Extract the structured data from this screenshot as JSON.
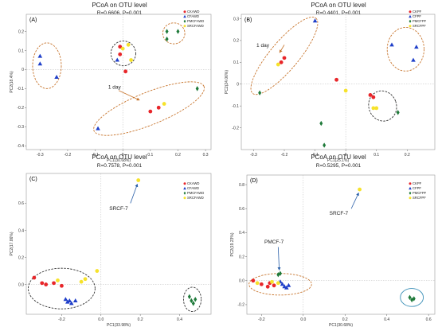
{
  "colors": {
    "red": "#e8262a",
    "blue": "#1f3fc9",
    "green": "#1f7a3a",
    "yellow": "#f6e22b",
    "ellipse_orange": "#c8762f",
    "ellipse_dark": "#333333",
    "ellipse_blue": "#3a8fb7",
    "arrow_orange": "#c8762f",
    "arrow_blue": "#2a5fa8"
  },
  "chart_data": [
    {
      "type": "scatter",
      "panel_label": "(A)",
      "title": "PCoA on OTU level",
      "subtitle": "R=0.6606, P=0.001",
      "xlabel": "PC1(30.68%)",
      "ylabel": "PC2(18.4%)",
      "xlim": [
        -0.35,
        0.32
      ],
      "ylim": [
        -0.42,
        0.29
      ],
      "xticks": [
        -0.3,
        -0.2,
        -0.1,
        0,
        0.1,
        0.2,
        0.3
      ],
      "xtick_labels": [
        "-0.3",
        "-0.2",
        "-0.1",
        "0",
        "0.1",
        "0.2",
        "0.3"
      ],
      "yticks": [
        -0.4,
        -0.3,
        -0.2,
        -0.1,
        0,
        0.1,
        0.2
      ],
      "ytick_labels": [
        "-0.4",
        "-0.3",
        "-0.2",
        "-0.1",
        "0",
        "0.1",
        "0.2"
      ],
      "series": [
        {
          "name": "CKAWD",
          "color": "red",
          "marker": "circle",
          "x": [
            -0.01,
            -0.01,
            0.01,
            0.1,
            0.13
          ],
          "y": [
            0.12,
            0.08,
            -0.01,
            -0.22,
            -0.2
          ]
        },
        {
          "name": "CFAWD",
          "color": "blue",
          "marker": "triangle",
          "x": [
            -0.3,
            -0.3,
            -0.24,
            -0.02,
            -0.09
          ],
          "y": [
            0.07,
            0.03,
            -0.04,
            0.05,
            -0.31
          ]
        },
        {
          "name": "PMCFAWD",
          "color": "green",
          "marker": "diamond",
          "x": [
            0.16,
            0.2,
            0.16,
            0.27
          ],
          "y": [
            0.2,
            0.2,
            0.16,
            -0.1
          ]
        },
        {
          "name": "SRCFAWD",
          "color": "yellow",
          "marker": "circle",
          "x": [
            0.0,
            0.03,
            0.15,
            0.02
          ],
          "y": [
            0.11,
            0.05,
            -0.18,
            0.13
          ]
        }
      ],
      "annotations": [
        {
          "text": "1 day"
        }
      ],
      "legend": "top-right"
    },
    {
      "type": "scatter",
      "panel_label": "(B)",
      "title": "PCoA on OTU level",
      "subtitle": "R=0.4401, P=0.001",
      "xlabel": "PC1(25.1%)",
      "ylabel": "PC2(24.06%)",
      "xlim": [
        -0.34,
        0.29
      ],
      "ylim": [
        -0.3,
        0.32
      ],
      "xticks": [
        -0.3,
        -0.2,
        -0.1,
        0,
        0.1,
        0.2
      ],
      "xtick_labels": [
        "-0.3",
        "-0.2",
        "-0.1",
        "0",
        "0.1",
        "0.2"
      ],
      "yticks": [
        -0.2,
        -0.1,
        0,
        0.1,
        0.2,
        0.3
      ],
      "ytick_labels": [
        "-0.2",
        "-0.1",
        "0",
        "0.1",
        "0.2",
        "0.3"
      ],
      "series": [
        {
          "name": "CKPF",
          "color": "red",
          "marker": "circle",
          "x": [
            -0.2,
            -0.21,
            0.08,
            0.09,
            -0.03
          ],
          "y": [
            0.12,
            0.1,
            -0.05,
            -0.06,
            0.02
          ]
        },
        {
          "name": "CFPF",
          "color": "blue",
          "marker": "triangle",
          "x": [
            -0.1,
            0.15,
            0.22,
            0.23
          ],
          "y": [
            0.29,
            0.18,
            0.11,
            0.17
          ]
        },
        {
          "name": "PMCFPF",
          "color": "green",
          "marker": "diamond",
          "x": [
            -0.28,
            -0.08,
            -0.07,
            0.17
          ],
          "y": [
            -0.04,
            -0.18,
            -0.28,
            -0.13
          ]
        },
        {
          "name": "SRCFPF",
          "color": "yellow",
          "marker": "circle",
          "x": [
            -0.22,
            0.0,
            0.09,
            0.1
          ],
          "y": [
            0.09,
            -0.03,
            -0.11,
            -0.11
          ]
        }
      ],
      "annotations": [
        {
          "text": "1 day"
        }
      ],
      "legend": "top-right"
    },
    {
      "type": "scatter",
      "panel_label": "(C)",
      "title": "PCoA on OTU level",
      "subtitle": "R=0.7578, P=0.001",
      "xlabel": "PC1(33.98%)",
      "ylabel": "PC2(17.86%)",
      "xlim": [
        -0.38,
        0.56
      ],
      "ylim": [
        -0.22,
        0.82
      ],
      "xticks": [
        -0.2,
        0,
        0.2,
        0.4
      ],
      "xtick_labels": [
        "-0.2",
        "0.0",
        "0.2",
        "0.4"
      ],
      "yticks": [
        0,
        0.2,
        0.4,
        0.6
      ],
      "ytick_labels": [
        "0.0",
        "0.2",
        "0.4",
        "0.6"
      ],
      "series": [
        {
          "name": "CKAWD",
          "color": "red",
          "marker": "circle",
          "x": [
            -0.34,
            -0.3,
            -0.28,
            -0.24,
            -0.2
          ],
          "y": [
            0.05,
            0.01,
            0.0,
            0.01,
            -0.01
          ]
        },
        {
          "name": "CFAWD",
          "color": "blue",
          "marker": "triangle",
          "x": [
            -0.18,
            -0.17,
            -0.16,
            -0.15,
            -0.13
          ],
          "y": [
            -0.11,
            -0.13,
            -0.12,
            -0.14,
            -0.12
          ]
        },
        {
          "name": "PMCFAWD",
          "color": "green",
          "marker": "diamond",
          "x": [
            0.45,
            0.46,
            0.47,
            0.48
          ],
          "y": [
            -0.09,
            -0.12,
            -0.14,
            -0.11
          ]
        },
        {
          "name": "SRCFAWD",
          "color": "yellow",
          "marker": "circle",
          "x": [
            -0.22,
            -0.1,
            -0.08,
            -0.02,
            0.19
          ],
          "y": [
            0.03,
            0.02,
            0.04,
            0.1,
            0.77
          ]
        }
      ],
      "annotations": [
        {
          "text": "SRCF-7"
        }
      ],
      "legend": "top-right"
    },
    {
      "type": "scatter",
      "panel_label": "(D)",
      "title": "PCoA on OTU level",
      "subtitle": "R=0.5295, P=0.001",
      "xlabel": "PC1(30.68%)",
      "ylabel": "PC2(19.23%)",
      "xlim": [
        -0.27,
        0.63
      ],
      "ylim": [
        -0.28,
        0.88
      ],
      "xticks": [
        -0.2,
        0,
        0.2,
        0.4,
        0.6
      ],
      "xtick_labels": [
        "-0.2",
        "0.0",
        "0.2",
        "0.4",
        "0.6"
      ],
      "yticks": [
        -0.2,
        0,
        0.2,
        0.4,
        0.6,
        0.8
      ],
      "ytick_labels": [
        "-0.2",
        "0.0",
        "0.2",
        "0.4",
        "0.6",
        "0.8"
      ],
      "series": [
        {
          "name": "CKPF",
          "color": "red",
          "marker": "circle",
          "x": [
            -0.24,
            -0.2,
            -0.17,
            -0.14,
            -0.16
          ],
          "y": [
            0.0,
            -0.03,
            -0.05,
            -0.04,
            -0.02
          ]
        },
        {
          "name": "CFPF",
          "color": "blue",
          "marker": "triangle",
          "x": [
            -0.11,
            -0.1,
            -0.09,
            -0.08,
            -0.07
          ],
          "y": [
            -0.01,
            -0.03,
            -0.05,
            -0.06,
            -0.04
          ]
        },
        {
          "name": "PMCFPF",
          "color": "green",
          "marker": "diamond",
          "x": [
            -0.12,
            -0.11,
            0.51,
            0.52,
            0.53
          ],
          "y": [
            0.05,
            0.06,
            -0.14,
            -0.16,
            -0.15
          ]
        },
        {
          "name": "SRCFPF",
          "color": "yellow",
          "marker": "circle",
          "x": [
            -0.22,
            -0.15,
            -0.12,
            0.27
          ],
          "y": [
            -0.02,
            -0.01,
            -0.02,
            0.76
          ]
        }
      ],
      "annotations": [
        {
          "text": "SRCF-7"
        },
        {
          "text": "PMCF-7"
        }
      ],
      "legend": "top-right"
    }
  ]
}
